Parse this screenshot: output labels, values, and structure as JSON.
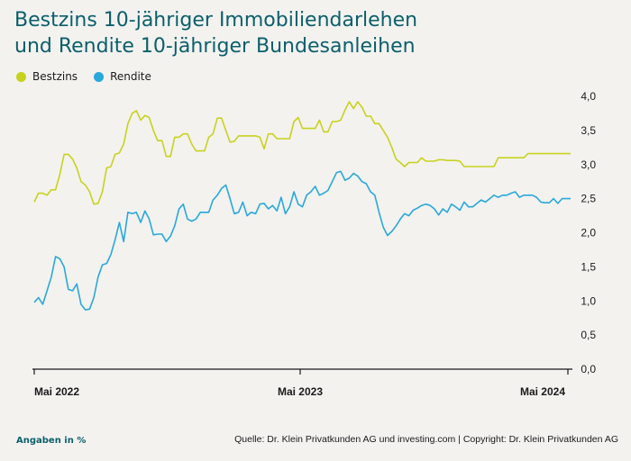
{
  "chart_data": {
    "type": "line",
    "title": "Bestzins 10-jähriger Immobiliendarlehen\nund Rendite 10-jähriger Bundesanleihen",
    "xlabel": "",
    "ylabel": "",
    "ylim": [
      0,
      4
    ],
    "yticks": [
      "4,0",
      "3,5",
      "3,0",
      "2,5",
      "2,0",
      "1,5",
      "1,0",
      "0,5",
      "0,0"
    ],
    "xticks": [
      "Mai 2022",
      "Mai 2023",
      "Mai 2024"
    ],
    "legend": "top-left",
    "grid": false,
    "unit_note": "Angaben in %",
    "source": "Quelle: Dr. Klein Privatkunden AG und investing.com | Copyright: Dr. Klein Privatkunden AG",
    "series": [
      {
        "name": "Bestzins",
        "color": "#c8d21e",
        "values": [
          2.45,
          2.58,
          2.58,
          2.55,
          2.63,
          2.63,
          2.85,
          3.15,
          3.15,
          3.08,
          2.95,
          2.75,
          2.7,
          2.6,
          2.42,
          2.43,
          2.6,
          2.95,
          2.97,
          3.15,
          3.17,
          3.3,
          3.6,
          3.75,
          3.79,
          3.65,
          3.72,
          3.69,
          3.5,
          3.35,
          3.35,
          3.12,
          3.12,
          3.4,
          3.4,
          3.45,
          3.45,
          3.3,
          3.2,
          3.2,
          3.2,
          3.4,
          3.45,
          3.68,
          3.68,
          3.5,
          3.33,
          3.34,
          3.42,
          3.42,
          3.42,
          3.42,
          3.42,
          3.4,
          3.23,
          3.45,
          3.45,
          3.38,
          3.38,
          3.38,
          3.38,
          3.63,
          3.69,
          3.53,
          3.53,
          3.53,
          3.53,
          3.65,
          3.48,
          3.48,
          3.63,
          3.63,
          3.65,
          3.8,
          3.92,
          3.82,
          3.92,
          3.84,
          3.71,
          3.71,
          3.6,
          3.6,
          3.5,
          3.4,
          3.25,
          3.08,
          3.03,
          2.97,
          3.03,
          3.03,
          3.03,
          3.1,
          3.05,
          3.05,
          3.05,
          3.07,
          3.07,
          3.06,
          3.06,
          3.06,
          3.05,
          2.97,
          2.97,
          2.97,
          2.97,
          2.97,
          2.97,
          2.97,
          2.97,
          3.1,
          3.1,
          3.1,
          3.1,
          3.1,
          3.1,
          3.1,
          3.16,
          3.16,
          3.16,
          3.16,
          3.16,
          3.16,
          3.16,
          3.16,
          3.16,
          3.16,
          3.16
        ]
      },
      {
        "name": "Rendite",
        "color": "#29a8dc",
        "values": [
          0.98,
          1.05,
          0.95,
          1.15,
          1.35,
          1.65,
          1.62,
          1.5,
          1.17,
          1.15,
          1.25,
          0.95,
          0.87,
          0.88,
          1.05,
          1.35,
          1.53,
          1.55,
          1.68,
          1.9,
          2.15,
          1.87,
          2.3,
          2.28,
          2.3,
          2.15,
          2.32,
          2.2,
          1.97,
          1.98,
          1.98,
          1.87,
          1.95,
          2.1,
          2.35,
          2.42,
          2.2,
          2.17,
          2.2,
          2.3,
          2.3,
          2.3,
          2.48,
          2.55,
          2.65,
          2.7,
          2.5,
          2.28,
          2.3,
          2.45,
          2.25,
          2.3,
          2.28,
          2.42,
          2.43,
          2.35,
          2.4,
          2.32,
          2.52,
          2.28,
          2.38,
          2.6,
          2.42,
          2.38,
          2.55,
          2.6,
          2.68,
          2.55,
          2.58,
          2.62,
          2.75,
          2.88,
          2.9,
          2.77,
          2.8,
          2.87,
          2.83,
          2.75,
          2.72,
          2.6,
          2.55,
          2.3,
          2.08,
          1.96,
          2.02,
          2.1,
          2.2,
          2.28,
          2.25,
          2.33,
          2.36,
          2.4,
          2.42,
          2.4,
          2.35,
          2.26,
          2.35,
          2.3,
          2.42,
          2.38,
          2.33,
          2.45,
          2.38,
          2.38,
          2.43,
          2.48,
          2.45,
          2.5,
          2.55,
          2.52,
          2.55,
          2.55,
          2.58,
          2.6,
          2.52,
          2.55,
          2.55,
          2.55,
          2.52,
          2.45,
          2.44,
          2.44,
          2.5,
          2.43,
          2.5,
          2.5,
          2.5
        ]
      }
    ]
  }
}
